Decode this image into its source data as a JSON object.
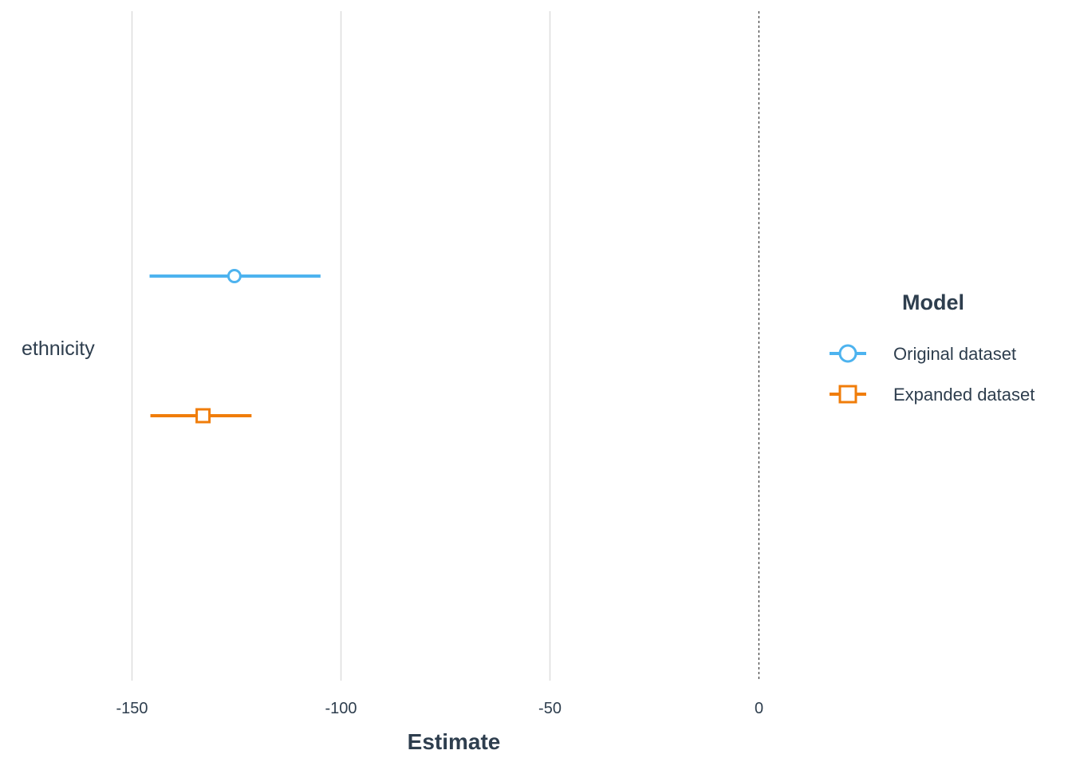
{
  "chart_data": {
    "type": "scatter",
    "subtype": "coefficient-plot",
    "title": "",
    "xlabel": "Estimate",
    "ylabel": "",
    "xlim": [
      -170,
      0
    ],
    "x_ticks": [
      -150,
      -100,
      -50,
      0
    ],
    "x_tick_labels": [
      "-150",
      "-100",
      "-50",
      "0"
    ],
    "reference_line": 0,
    "grid": "vertical",
    "categories": [
      "ethnicity"
    ],
    "legend": {
      "title": "Model",
      "position": "right"
    },
    "series": [
      {
        "name": "Original dataset",
        "color": "#4db3ef",
        "marker": "circle",
        "estimate": -125.5,
        "ci_low": -145.8,
        "ci_high": -104.9
      },
      {
        "name": "Expanded dataset",
        "color": "#f07d0a",
        "marker": "square",
        "estimate": -133.0,
        "ci_low": -145.6,
        "ci_high": -121.4
      }
    ]
  }
}
